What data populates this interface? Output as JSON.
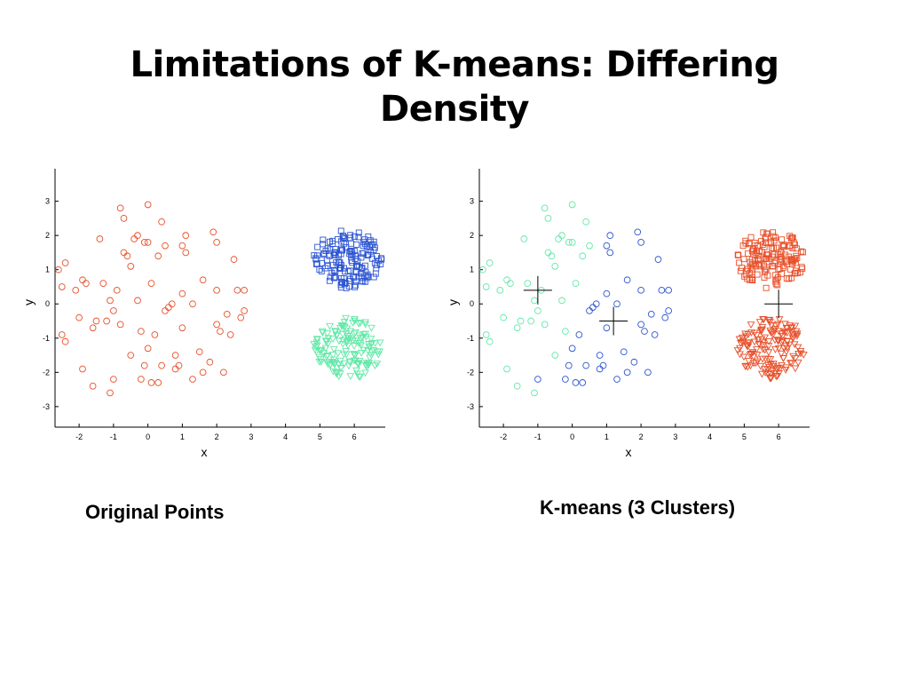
{
  "slide": {
    "title_line1": "Limitations of K-means: Differing",
    "title_line2": "Density"
  },
  "captions": {
    "left": "Original Points",
    "right": "K-means (3 Clusters)"
  },
  "colors": {
    "orange": "#e8502a",
    "blue": "#2d55d2",
    "green": "#63e8a8",
    "axis": "#000000"
  },
  "chart_data": [
    {
      "type": "scatter",
      "title": "",
      "xlabel": "x",
      "ylabel": "y",
      "xlim": [
        -2.7,
        6.9
      ],
      "ylim": [
        -3.6,
        3.95
      ],
      "xticks": [
        -2,
        -1,
        0,
        1,
        2,
        3,
        4,
        5,
        6
      ],
      "yticks": [
        -3,
        -2,
        -1,
        0,
        1,
        2,
        3
      ],
      "grid": false,
      "series": [
        {
          "color": "#e8502a",
          "marker": "circle",
          "points": [
            [
              -2.6,
              1
            ],
            [
              -2.5,
              0.5
            ],
            [
              -2.4,
              1.2
            ],
            [
              -2.5,
              -0.9
            ],
            [
              -2.4,
              -1.1
            ],
            [
              -2.1,
              0.4
            ],
            [
              -2.0,
              -0.4
            ],
            [
              -1.9,
              0.7
            ],
            [
              -1.8,
              0.6
            ],
            [
              -1.9,
              -1.9
            ],
            [
              -1.6,
              -0.7
            ],
            [
              -1.6,
              -2.4
            ],
            [
              -1.5,
              -0.5
            ],
            [
              -1.4,
              1.9
            ],
            [
              -1.3,
              0.6
            ],
            [
              -1.2,
              -0.5
            ],
            [
              -1.1,
              -2.6
            ],
            [
              -1.1,
              0.1
            ],
            [
              -1.0,
              -0.2
            ],
            [
              -1.0,
              -2.2
            ],
            [
              -0.9,
              0.4
            ],
            [
              -0.8,
              -0.6
            ],
            [
              -0.8,
              2.8
            ],
            [
              -0.7,
              2.5
            ],
            [
              -0.7,
              1.5
            ],
            [
              -0.6,
              1.4
            ],
            [
              -0.5,
              1.1
            ],
            [
              -0.5,
              -1.5
            ],
            [
              -0.4,
              1.9
            ],
            [
              -0.3,
              2.0
            ],
            [
              -0.2,
              -0.8
            ],
            [
              -0.2,
              -2.2
            ],
            [
              -0.1,
              -1.8
            ],
            [
              -0.1,
              1.8
            ],
            [
              0.0,
              2.9
            ],
            [
              0.0,
              1.8
            ],
            [
              0.0,
              -1.3
            ],
            [
              0.1,
              -2.3
            ],
            [
              0.1,
              0.6
            ],
            [
              0.2,
              -0.9
            ],
            [
              0.3,
              1.4
            ],
            [
              0.3,
              -2.3
            ],
            [
              0.4,
              2.4
            ],
            [
              0.4,
              -1.8
            ],
            [
              0.5,
              -0.2
            ],
            [
              0.5,
              1.7
            ],
            [
              0.6,
              -0.1
            ],
            [
              0.7,
              0.0
            ],
            [
              0.8,
              -1.5
            ],
            [
              0.8,
              -1.9
            ],
            [
              0.9,
              -1.8
            ],
            [
              1.0,
              0.3
            ],
            [
              1.0,
              1.7
            ],
            [
              1.0,
              -0.7
            ],
            [
              1.1,
              1.5
            ],
            [
              1.1,
              2.0
            ],
            [
              1.3,
              -2.2
            ],
            [
              1.3,
              0.0
            ],
            [
              1.5,
              -1.4
            ],
            [
              1.6,
              -2.0
            ],
            [
              1.8,
              -1.7
            ],
            [
              1.9,
              2.1
            ],
            [
              2.0,
              0.4
            ],
            [
              2.0,
              1.8
            ],
            [
              2.0,
              -0.6
            ],
            [
              2.1,
              -0.8
            ],
            [
              2.2,
              -2.0
            ],
            [
              2.4,
              -0.9
            ],
            [
              2.5,
              1.3
            ],
            [
              2.6,
              0.4
            ],
            [
              2.7,
              -0.4
            ],
            [
              2.8,
              -0.2
            ],
            [
              2.8,
              0.4
            ],
            [
              -0.3,
              0.1
            ],
            [
              1.6,
              0.7
            ],
            [
              2.3,
              -0.3
            ]
          ]
        },
        {
          "color": "#2d55d2",
          "marker": "square",
          "count": 150,
          "center": [
            5.8,
            1.3
          ],
          "radius": [
            1.0,
            0.85
          ]
        },
        {
          "color": "#63e8a8",
          "marker": "triangle-down",
          "count": 150,
          "center": [
            5.8,
            -1.3
          ],
          "radius": [
            1.0,
            0.9
          ]
        }
      ]
    },
    {
      "type": "scatter",
      "title": "",
      "xlabel": "x",
      "ylabel": "y",
      "xlim": [
        -2.7,
        6.9
      ],
      "ylim": [
        -3.6,
        3.95
      ],
      "xticks": [
        -2,
        -1,
        0,
        1,
        2,
        3,
        4,
        5,
        6
      ],
      "yticks": [
        -3,
        -2,
        -1,
        0,
        1,
        2,
        3
      ],
      "grid": false,
      "centroids": [
        [
          -1.0,
          0.4
        ],
        [
          1.2,
          -0.5
        ],
        [
          6.0,
          0.0
        ]
      ],
      "series": [
        {
          "color": "#63e8a8",
          "marker": "circle",
          "points": [
            [
              -2.6,
              1
            ],
            [
              -2.5,
              0.5
            ],
            [
              -2.4,
              1.2
            ],
            [
              -2.5,
              -0.9
            ],
            [
              -2.4,
              -1.1
            ],
            [
              -2.1,
              0.4
            ],
            [
              -2.0,
              -0.4
            ],
            [
              -1.9,
              0.7
            ],
            [
              -1.8,
              0.6
            ],
            [
              -1.9,
              -1.9
            ],
            [
              -1.6,
              -0.7
            ],
            [
              -1.6,
              -2.4
            ],
            [
              -1.5,
              -0.5
            ],
            [
              -1.4,
              1.9
            ],
            [
              -1.3,
              0.6
            ],
            [
              -1.2,
              -0.5
            ],
            [
              -1.1,
              -2.6
            ],
            [
              -1.1,
              0.1
            ],
            [
              -1.0,
              -0.2
            ],
            [
              -0.9,
              0.4
            ],
            [
              -0.8,
              -0.6
            ],
            [
              -0.8,
              2.8
            ],
            [
              -0.7,
              2.5
            ],
            [
              -0.7,
              1.5
            ],
            [
              -0.6,
              1.4
            ],
            [
              -0.5,
              1.1
            ],
            [
              -0.5,
              -1.5
            ],
            [
              -0.4,
              1.9
            ],
            [
              -0.3,
              2.0
            ],
            [
              -0.2,
              -0.8
            ],
            [
              -0.1,
              1.8
            ],
            [
              0.0,
              2.9
            ],
            [
              0.0,
              1.8
            ],
            [
              0.1,
              0.6
            ],
            [
              0.3,
              1.4
            ],
            [
              0.4,
              2.4
            ],
            [
              0.5,
              1.7
            ],
            [
              -0.3,
              0.1
            ]
          ]
        },
        {
          "color": "#2d55d2",
          "marker": "circle",
          "points": [
            [
              -1.0,
              -2.2
            ],
            [
              -0.2,
              -2.2
            ],
            [
              -0.1,
              -1.8
            ],
            [
              0.0,
              -1.3
            ],
            [
              0.1,
              -2.3
            ],
            [
              0.2,
              -0.9
            ],
            [
              0.3,
              -2.3
            ],
            [
              0.4,
              -1.8
            ],
            [
              0.5,
              -0.2
            ],
            [
              0.6,
              -0.1
            ],
            [
              0.7,
              0.0
            ],
            [
              0.8,
              -1.5
            ],
            [
              0.8,
              -1.9
            ],
            [
              0.9,
              -1.8
            ],
            [
              1.0,
              0.3
            ],
            [
              1.0,
              1.7
            ],
            [
              1.0,
              -0.7
            ],
            [
              1.1,
              1.5
            ],
            [
              1.1,
              2.0
            ],
            [
              1.3,
              -2.2
            ],
            [
              1.3,
              0.0
            ],
            [
              1.5,
              -1.4
            ],
            [
              1.6,
              -2.0
            ],
            [
              1.8,
              -1.7
            ],
            [
              1.9,
              2.1
            ],
            [
              2.0,
              0.4
            ],
            [
              2.0,
              1.8
            ],
            [
              2.0,
              -0.6
            ],
            [
              2.1,
              -0.8
            ],
            [
              2.2,
              -2.0
            ],
            [
              2.4,
              -0.9
            ],
            [
              2.5,
              1.3
            ],
            [
              2.6,
              0.4
            ],
            [
              2.7,
              -0.4
            ],
            [
              2.8,
              -0.2
            ],
            [
              2.8,
              0.4
            ],
            [
              1.6,
              0.7
            ],
            [
              2.3,
              -0.3
            ]
          ]
        },
        {
          "color": "#e8502a",
          "marker": "square",
          "count": 150,
          "center": [
            5.8,
            1.3
          ],
          "radius": [
            1.0,
            0.85
          ]
        },
        {
          "color": "#e8502a",
          "marker": "triangle-down",
          "count": 150,
          "center": [
            5.8,
            -1.3
          ],
          "radius": [
            1.0,
            0.9
          ]
        }
      ]
    }
  ]
}
